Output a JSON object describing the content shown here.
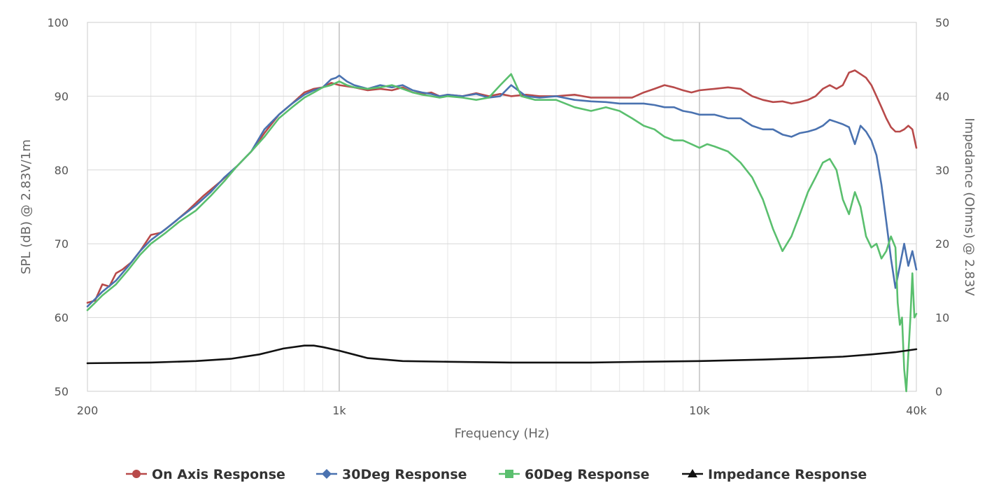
{
  "chart_data": {
    "type": "line",
    "xlabel": "Frequency (Hz)",
    "ylabel": "SPL (dB) @ 2.83V/1m",
    "y2label": "Impedance (Ohms) @ 2.83V",
    "x_scale": "log",
    "xlim": [
      200,
      40000
    ],
    "ylim": [
      50,
      100
    ],
    "y2lim": [
      0,
      50
    ],
    "grid": true,
    "legend_position": "bottom",
    "x_ticks": [
      {
        "value": 200,
        "label": "200"
      },
      {
        "value": 1000,
        "label": "1k"
      },
      {
        "value": 10000,
        "label": "10k"
      },
      {
        "value": 40000,
        "label": "40k"
      }
    ],
    "y_ticks": [
      {
        "value": 50,
        "label": "50"
      },
      {
        "value": 60,
        "label": "60"
      },
      {
        "value": 70,
        "label": "70"
      },
      {
        "value": 80,
        "label": "80"
      },
      {
        "value": 90,
        "label": "90"
      },
      {
        "value": 100,
        "label": "100"
      }
    ],
    "y2_ticks": [
      {
        "value": 0,
        "label": "0"
      },
      {
        "value": 10,
        "label": "10"
      },
      {
        "value": 20,
        "label": "20"
      },
      {
        "value": 30,
        "label": "30"
      },
      {
        "value": 40,
        "label": "40"
      },
      {
        "value": 50,
        "label": "50"
      }
    ],
    "series": [
      {
        "name": "On Axis Response",
        "color": "#b84a4a",
        "marker": "circle",
        "axis": "left",
        "points": [
          [
            200,
            62
          ],
          [
            210,
            62.3
          ],
          [
            220,
            64.5
          ],
          [
            230,
            64.2
          ],
          [
            240,
            66
          ],
          [
            250,
            66.5
          ],
          [
            265,
            67.5
          ],
          [
            280,
            69
          ],
          [
            300,
            71.2
          ],
          [
            320,
            71.5
          ],
          [
            350,
            73
          ],
          [
            380,
            74.5
          ],
          [
            420,
            76.5
          ],
          [
            470,
            78.5
          ],
          [
            520,
            80.5
          ],
          [
            570,
            82.5
          ],
          [
            620,
            85
          ],
          [
            680,
            87.5
          ],
          [
            740,
            89
          ],
          [
            800,
            90.5
          ],
          [
            850,
            91
          ],
          [
            900,
            91.2
          ],
          [
            950,
            91.8
          ],
          [
            1000,
            91.5
          ],
          [
            1100,
            91.2
          ],
          [
            1200,
            90.8
          ],
          [
            1300,
            91
          ],
          [
            1400,
            90.8
          ],
          [
            1500,
            91.2
          ],
          [
            1600,
            90.5
          ],
          [
            1700,
            90.3
          ],
          [
            1800,
            90.5
          ],
          [
            1900,
            90
          ],
          [
            2000,
            90.2
          ],
          [
            2200,
            90
          ],
          [
            2400,
            90.4
          ],
          [
            2600,
            90
          ],
          [
            2800,
            90.3
          ],
          [
            3000,
            90
          ],
          [
            3300,
            90.2
          ],
          [
            3600,
            90
          ],
          [
            4000,
            90
          ],
          [
            4500,
            90.2
          ],
          [
            5000,
            89.8
          ],
          [
            5500,
            89.8
          ],
          [
            6000,
            89.8
          ],
          [
            6500,
            89.8
          ],
          [
            7000,
            90.5
          ],
          [
            7500,
            91
          ],
          [
            8000,
            91.5
          ],
          [
            8500,
            91.2
          ],
          [
            9000,
            90.8
          ],
          [
            9500,
            90.5
          ],
          [
            10000,
            90.8
          ],
          [
            11000,
            91
          ],
          [
            12000,
            91.2
          ],
          [
            13000,
            91
          ],
          [
            14000,
            90
          ],
          [
            15000,
            89.5
          ],
          [
            16000,
            89.2
          ],
          [
            17000,
            89.3
          ],
          [
            18000,
            89
          ],
          [
            19000,
            89.2
          ],
          [
            20000,
            89.5
          ],
          [
            21000,
            90
          ],
          [
            22000,
            91
          ],
          [
            23000,
            91.5
          ],
          [
            24000,
            91
          ],
          [
            25000,
            91.5
          ],
          [
            26000,
            93.2
          ],
          [
            27000,
            93.5
          ],
          [
            28000,
            93
          ],
          [
            29000,
            92.5
          ],
          [
            30000,
            91.5
          ],
          [
            31000,
            90
          ],
          [
            32000,
            88.5
          ],
          [
            33000,
            87
          ],
          [
            34000,
            85.8
          ],
          [
            35000,
            85.2
          ],
          [
            36000,
            85.2
          ],
          [
            37000,
            85.5
          ],
          [
            38000,
            86
          ],
          [
            39000,
            85.5
          ],
          [
            40000,
            83
          ]
        ]
      },
      {
        "name": "30Deg Response",
        "color": "#4a72b0",
        "marker": "diamond",
        "axis": "left",
        "points": [
          [
            200,
            61.5
          ],
          [
            210,
            62.5
          ],
          [
            220,
            63.5
          ],
          [
            240,
            65
          ],
          [
            260,
            67
          ],
          [
            280,
            69
          ],
          [
            300,
            70.5
          ],
          [
            330,
            72
          ],
          [
            360,
            73.5
          ],
          [
            400,
            75.2
          ],
          [
            440,
            77
          ],
          [
            480,
            79
          ],
          [
            520,
            80.5
          ],
          [
            570,
            82.5
          ],
          [
            620,
            85.5
          ],
          [
            680,
            87.5
          ],
          [
            740,
            89
          ],
          [
            800,
            90.2
          ],
          [
            850,
            90.8
          ],
          [
            900,
            91.2
          ],
          [
            950,
            92.3
          ],
          [
            980,
            92.5
          ],
          [
            1000,
            92.8
          ],
          [
            1050,
            92
          ],
          [
            1100,
            91.5
          ],
          [
            1200,
            91
          ],
          [
            1300,
            91.5
          ],
          [
            1400,
            91.2
          ],
          [
            1500,
            91.5
          ],
          [
            1600,
            90.8
          ],
          [
            1700,
            90.5
          ],
          [
            1800,
            90.3
          ],
          [
            1900,
            90
          ],
          [
            2000,
            90.2
          ],
          [
            2200,
            90
          ],
          [
            2400,
            90.3
          ],
          [
            2600,
            89.8
          ],
          [
            2800,
            90
          ],
          [
            3000,
            91.5
          ],
          [
            3300,
            90
          ],
          [
            3600,
            89.8
          ],
          [
            4000,
            90
          ],
          [
            4500,
            89.5
          ],
          [
            5000,
            89.3
          ],
          [
            5500,
            89.2
          ],
          [
            6000,
            89
          ],
          [
            6500,
            89
          ],
          [
            7000,
            89
          ],
          [
            7500,
            88.8
          ],
          [
            8000,
            88.5
          ],
          [
            8500,
            88.5
          ],
          [
            9000,
            88
          ],
          [
            9500,
            87.8
          ],
          [
            10000,
            87.5
          ],
          [
            11000,
            87.5
          ],
          [
            12000,
            87
          ],
          [
            13000,
            87
          ],
          [
            14000,
            86
          ],
          [
            15000,
            85.5
          ],
          [
            16000,
            85.5
          ],
          [
            17000,
            84.8
          ],
          [
            18000,
            84.5
          ],
          [
            19000,
            85
          ],
          [
            20000,
            85.2
          ],
          [
            21000,
            85.5
          ],
          [
            22000,
            86
          ],
          [
            23000,
            86.8
          ],
          [
            24000,
            86.5
          ],
          [
            25000,
            86.2
          ],
          [
            26000,
            85.8
          ],
          [
            27000,
            83.5
          ],
          [
            28000,
            86
          ],
          [
            29000,
            85.2
          ],
          [
            30000,
            84
          ],
          [
            31000,
            82
          ],
          [
            32000,
            78
          ],
          [
            33000,
            73
          ],
          [
            34000,
            68
          ],
          [
            35000,
            64
          ],
          [
            36000,
            67
          ],
          [
            37000,
            70
          ],
          [
            38000,
            67
          ],
          [
            39000,
            69
          ],
          [
            40000,
            66.5
          ]
        ]
      },
      {
        "name": "60Deg Response",
        "color": "#5abf6e",
        "marker": "square",
        "axis": "left",
        "points": [
          [
            200,
            61
          ],
          [
            210,
            62
          ],
          [
            220,
            63
          ],
          [
            240,
            64.5
          ],
          [
            260,
            66.5
          ],
          [
            280,
            68.5
          ],
          [
            300,
            70
          ],
          [
            330,
            71.5
          ],
          [
            360,
            73
          ],
          [
            400,
            74.5
          ],
          [
            440,
            76.5
          ],
          [
            480,
            78.5
          ],
          [
            520,
            80.5
          ],
          [
            570,
            82.5
          ],
          [
            620,
            84.5
          ],
          [
            680,
            87
          ],
          [
            740,
            88.5
          ],
          [
            800,
            89.8
          ],
          [
            850,
            90.5
          ],
          [
            900,
            91.2
          ],
          [
            950,
            91.5
          ],
          [
            1000,
            92
          ],
          [
            1050,
            91.5
          ],
          [
            1100,
            91.2
          ],
          [
            1200,
            91
          ],
          [
            1300,
            91.2
          ],
          [
            1400,
            91.5
          ],
          [
            1500,
            91
          ],
          [
            1600,
            90.5
          ],
          [
            1700,
            90.2
          ],
          [
            1800,
            90
          ],
          [
            1900,
            89.8
          ],
          [
            2000,
            90
          ],
          [
            2200,
            89.8
          ],
          [
            2400,
            89.5
          ],
          [
            2600,
            89.8
          ],
          [
            2800,
            91.5
          ],
          [
            3000,
            93
          ],
          [
            3200,
            90
          ],
          [
            3500,
            89.5
          ],
          [
            4000,
            89.5
          ],
          [
            4500,
            88.5
          ],
          [
            5000,
            88
          ],
          [
            5500,
            88.5
          ],
          [
            6000,
            88
          ],
          [
            6500,
            87
          ],
          [
            7000,
            86
          ],
          [
            7500,
            85.5
          ],
          [
            8000,
            84.5
          ],
          [
            8500,
            84
          ],
          [
            9000,
            84
          ],
          [
            9500,
            83.5
          ],
          [
            10000,
            83
          ],
          [
            10500,
            83.5
          ],
          [
            11000,
            83.2
          ],
          [
            12000,
            82.5
          ],
          [
            13000,
            81
          ],
          [
            14000,
            79
          ],
          [
            15000,
            76
          ],
          [
            16000,
            72
          ],
          [
            17000,
            69
          ],
          [
            18000,
            71
          ],
          [
            19000,
            74
          ],
          [
            20000,
            77
          ],
          [
            21000,
            79
          ],
          [
            22000,
            81
          ],
          [
            23000,
            81.5
          ],
          [
            24000,
            80
          ],
          [
            25000,
            76
          ],
          [
            26000,
            74
          ],
          [
            27000,
            77
          ],
          [
            28000,
            75
          ],
          [
            29000,
            71
          ],
          [
            30000,
            69.5
          ],
          [
            31000,
            70
          ],
          [
            32000,
            68
          ],
          [
            33000,
            69
          ],
          [
            34000,
            71
          ],
          [
            35000,
            69.5
          ],
          [
            35500,
            62
          ],
          [
            36000,
            59
          ],
          [
            36500,
            60
          ],
          [
            37000,
            53
          ],
          [
            37500,
            50
          ],
          [
            38000,
            55
          ],
          [
            38500,
            60
          ],
          [
            39000,
            66
          ],
          [
            39500,
            60
          ],
          [
            40000,
            60.5
          ]
        ]
      },
      {
        "name": "Impedance Response",
        "color": "#111111",
        "marker": "triangle",
        "axis": "right",
        "points": [
          [
            200,
            3.8
          ],
          [
            300,
            3.9
          ],
          [
            400,
            4.1
          ],
          [
            500,
            4.4
          ],
          [
            600,
            5
          ],
          [
            700,
            5.8
          ],
          [
            800,
            6.2
          ],
          [
            850,
            6.2
          ],
          [
            900,
            6
          ],
          [
            1000,
            5.5
          ],
          [
            1200,
            4.5
          ],
          [
            1500,
            4.1
          ],
          [
            2000,
            4
          ],
          [
            3000,
            3.9
          ],
          [
            5000,
            3.9
          ],
          [
            7000,
            4
          ],
          [
            10000,
            4.1
          ],
          [
            15000,
            4.3
          ],
          [
            20000,
            4.5
          ],
          [
            25000,
            4.7
          ],
          [
            30000,
            5
          ],
          [
            35000,
            5.3
          ],
          [
            40000,
            5.7
          ]
        ]
      }
    ]
  }
}
